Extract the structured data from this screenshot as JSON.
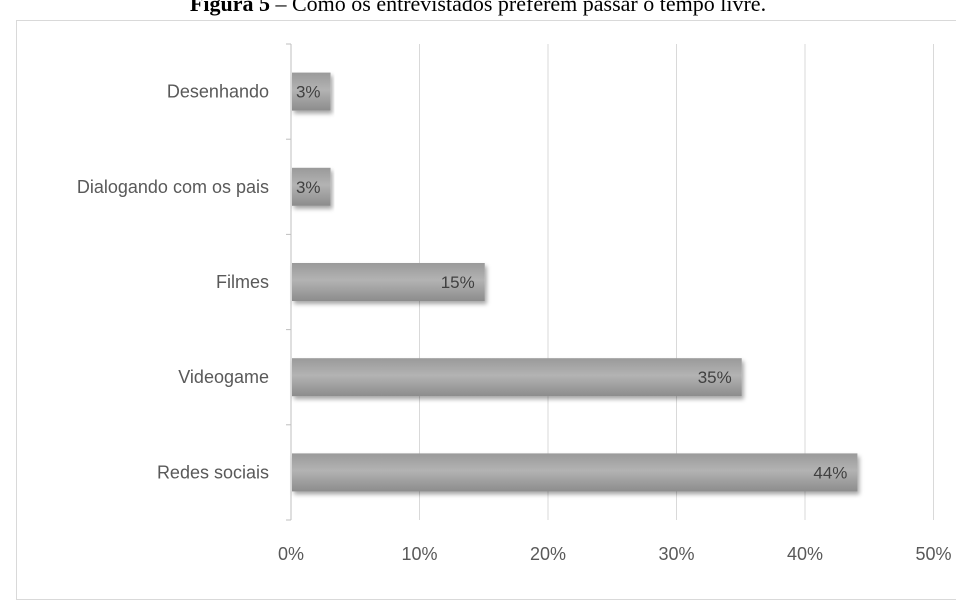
{
  "caption": {
    "prefix": "Figura 5",
    "text": " – Como os entrevistados preferem passar o tempo livre."
  },
  "chart_data": {
    "type": "bar",
    "orientation": "horizontal",
    "title": "",
    "xlabel": "",
    "ylabel": "",
    "categories": [
      "Desenhando",
      "Dialogando com os pais",
      "Filmes",
      "Videogame",
      "Redes sociais"
    ],
    "values": [
      3,
      3,
      15,
      35,
      44
    ],
    "data_labels": [
      "3%",
      "3%",
      "15%",
      "35%",
      "44%"
    ],
    "xlim": [
      0,
      50
    ],
    "xticks": [
      0,
      10,
      20,
      30,
      40,
      50
    ],
    "xtick_labels": [
      "0%",
      "10%",
      "20%",
      "30%",
      "40%",
      "50%"
    ],
    "grid": "vertical",
    "legend": "none",
    "bar_color": "#a6a6a6"
  }
}
